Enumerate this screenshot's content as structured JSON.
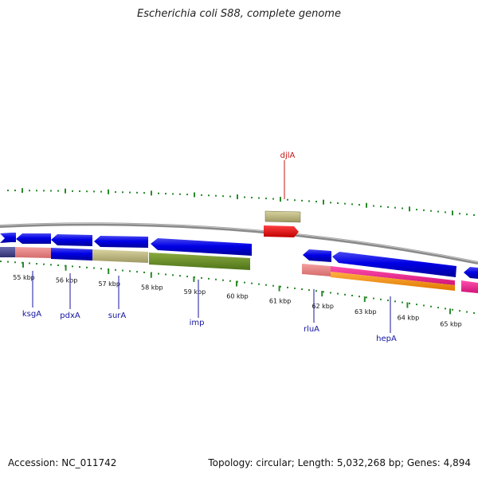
{
  "title": "Escherichia coli S88, complete genome",
  "accession_text": "Accession: NC_011742",
  "summary_text": "Topology: circular; Length: 5,032,268 bp; Genes: 4,894",
  "colors": {
    "backbone": "#888888",
    "tick": "#2a8a2a",
    "label_blue": "#1414a0",
    "label_red": "#c81414"
  },
  "axis": {
    "unit": "kbp",
    "major_ticks": [
      55,
      56,
      57,
      58,
      59,
      60,
      61,
      62,
      63,
      64,
      65
    ],
    "tick_labels": [
      "55 kbp",
      "56 kbp",
      "57 kbp",
      "58 kbp",
      "59 kbp",
      "60 kbp",
      "61 kbp",
      "62 kbp",
      "63 kbp",
      "64 kbp",
      "65 kbp"
    ]
  },
  "gene_labels": [
    {
      "name": "djlA",
      "color": "#c81414"
    },
    {
      "name": "ksgA",
      "color": "#1414a0"
    },
    {
      "name": "pdxA",
      "color": "#1414a0"
    },
    {
      "name": "surA",
      "color": "#1414a0"
    },
    {
      "name": "imp",
      "color": "#1414a0"
    },
    {
      "name": "rluA",
      "color": "#1414a0"
    },
    {
      "name": "hepA",
      "color": "#1414a0"
    }
  ]
}
